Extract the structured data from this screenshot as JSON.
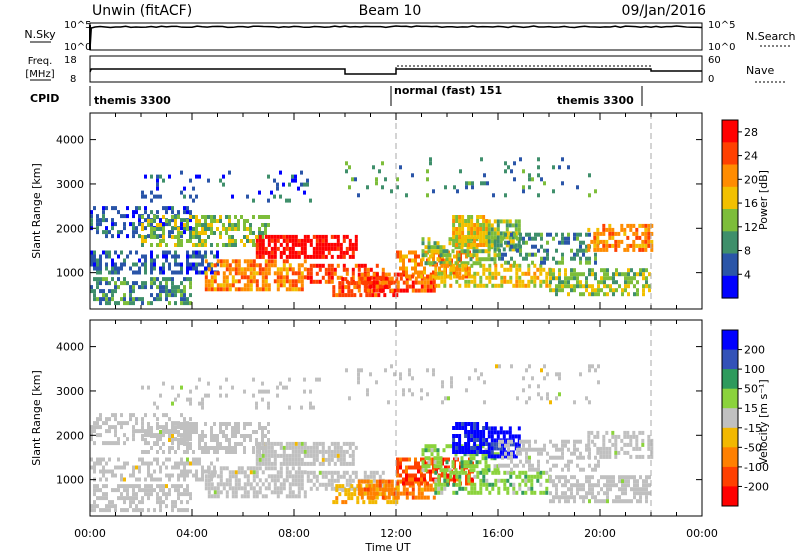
{
  "header": {
    "station": "Unwin (fitACF)",
    "beam": "Beam 10",
    "date": "09/Jan/2016"
  },
  "noise_panel": {
    "left_label": "N.Sky",
    "left_ticks": [
      "10^5",
      "10^0"
    ],
    "right_label": "N.Search",
    "right_ticks": [
      "10^5",
      "10^0"
    ]
  },
  "freq_panel": {
    "left_label_line1": "Freq.",
    "left_label_line2": "[MHz]",
    "left_ticks": [
      "18",
      "8"
    ],
    "right_label": "Nave",
    "right_ticks": [
      "60",
      "0"
    ]
  },
  "cpid": {
    "label": "CPID",
    "segments": [
      {
        "text": "themis 3300",
        "start_hour": 0,
        "end_hour": 12
      },
      {
        "text": "normal (fast) 151",
        "start_hour": 12,
        "end_hour": 22
      },
      {
        "text": "themis 3300",
        "start_hour": 12,
        "end_hour": 22
      }
    ]
  },
  "colors": {
    "power_scale": [
      "#0000ff",
      "#2a55a8",
      "#3f8f6b",
      "#7dbd3a",
      "#f2c000",
      "#ff8c00",
      "#ff4000",
      "#ff0000"
    ],
    "velocity_scale": [
      "#0000ff",
      "#3352b8",
      "#2e9a5c",
      "#8bd33c",
      "#c0c0c0",
      "#f2b800",
      "#ff8000",
      "#ff4000",
      "#ff0000"
    ],
    "ground_scatter": "#c0c0c0"
  },
  "chart_data": [
    {
      "type": "heatmap",
      "title": "",
      "xlabel": "",
      "ylabel": "Slant Range [km]",
      "xlim_hours": [
        0,
        24
      ],
      "ylim": [
        180,
        4600
      ],
      "x_ticks": [
        "00:00",
        "04:00",
        "08:00",
        "12:00",
        "16:00",
        "20:00",
        "00:00"
      ],
      "y_ticks": [
        1000,
        2000,
        3000,
        4000
      ],
      "colorbar": {
        "label": "Power [dB]",
        "ticks": [
          4,
          8,
          12,
          16,
          20,
          24,
          28
        ],
        "range": [
          0,
          30
        ]
      },
      "value": "power_dB",
      "dashed_markers_hours": [
        12,
        22
      ]
    },
    {
      "type": "heatmap",
      "title": "",
      "xlabel": "Time UT",
      "ylabel": "Slant Range [km]",
      "xlim_hours": [
        0,
        24
      ],
      "ylim": [
        180,
        4600
      ],
      "x_ticks": [
        "00:00",
        "04:00",
        "08:00",
        "12:00",
        "16:00",
        "20:00",
        "00:00"
      ],
      "y_ticks": [
        1000,
        2000,
        3000,
        4000
      ],
      "colorbar": {
        "label": "Velocity [m s⁻¹]",
        "ticks": [
          200,
          100,
          50,
          15,
          -15,
          -50,
          -100,
          -200
        ]
      },
      "value": "velocity_m_s",
      "dashed_markers_hours": [
        12,
        22
      ]
    }
  ]
}
